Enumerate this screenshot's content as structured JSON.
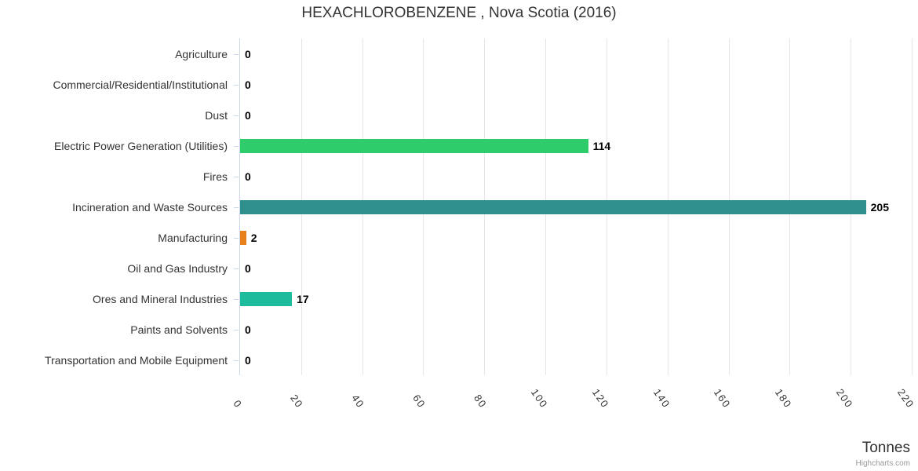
{
  "title": "HEXACHLOROBENZENE , Nova Scotia (2016)",
  "x_axis": {
    "title": "Tonnes",
    "tick_labels": [
      "0",
      "20",
      "40",
      "60",
      "80",
      "100",
      "120",
      "140",
      "160",
      "180",
      "200",
      "220"
    ]
  },
  "credits": "Highcharts.com",
  "chart_data": {
    "type": "bar",
    "orientation": "horizontal",
    "title": "HEXACHLOROBENZENE , Nova Scotia (2016)",
    "xlabel": "Tonnes",
    "ylabel": "",
    "xlim": [
      0,
      220
    ],
    "x_tick_interval": 20,
    "grid": true,
    "legend": false,
    "data_labels_shown": true,
    "categories": [
      "Agriculture",
      "Commercial/Residential/Institutional",
      "Dust",
      "Electric Power Generation (Utilities)",
      "Fires",
      "Incineration and Waste Sources",
      "Manufacturing",
      "Oil and Gas Industry",
      "Ores and Mineral Industries",
      "Paints and Solvents",
      "Transportation and Mobile Equipment"
    ],
    "values": [
      0,
      0,
      0,
      114,
      0,
      205,
      2,
      0,
      17,
      0,
      0
    ],
    "bar_colors": [
      null,
      null,
      null,
      "#2ecc6a",
      null,
      "#2e8f8c",
      "#e8811c",
      null,
      "#1cbc9c",
      null,
      null
    ]
  },
  "colors": {
    "background": "#ffffff",
    "text": "#333333",
    "data_label": "#000000",
    "gridline": "#e6e6e6",
    "axis": "#ccd6eb",
    "credits": "#999999"
  }
}
